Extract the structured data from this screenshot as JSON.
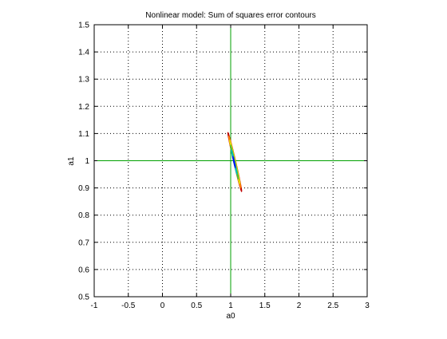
{
  "chart_data": {
    "type": "contour",
    "title": "Nonlinear model: Sum of squares error contours",
    "xlabel": "a0",
    "ylabel": "a1",
    "xlim": [
      -1,
      3
    ],
    "ylim": [
      0.5,
      1.5
    ],
    "xticks": [
      -1,
      -0.5,
      0,
      0.5,
      1,
      1.5,
      2,
      2.5,
      3
    ],
    "yticks": [
      0.5,
      0.6,
      0.7,
      0.8,
      0.9,
      1,
      1.1,
      1.2,
      1.3,
      1.4,
      1.5
    ],
    "xtick_labels": [
      "-1",
      "-0.5",
      "0",
      "0.5",
      "1",
      "1.5",
      "2",
      "2.5",
      "3"
    ],
    "ytick_labels": [
      "0.5",
      "0.6",
      "0.7",
      "0.8",
      "0.9",
      "1",
      "1.1",
      "1.2",
      "1.3",
      "1.4",
      "1.5"
    ],
    "grid": true,
    "reference_lines": {
      "x": 1,
      "y": 1,
      "color": "#00a000"
    },
    "contours": [
      {
        "level": 1,
        "center": [
          1.06,
          0.995
        ],
        "semi_major": 0.148,
        "semi_minor": 0.0115,
        "angle_deg": -1.07,
        "color": "#c00000"
      },
      {
        "level": 2,
        "center": [
          1.06,
          0.995
        ],
        "semi_major": 0.13,
        "semi_minor": 0.01,
        "angle_deg": -1.07,
        "color": "#ff8000"
      },
      {
        "level": 3,
        "center": [
          1.06,
          0.995
        ],
        "semi_major": 0.11,
        "semi_minor": 0.0085,
        "angle_deg": -1.07,
        "color": "#e0e000"
      },
      {
        "level": 4,
        "center": [
          1.055,
          0.995
        ],
        "semi_major": 0.085,
        "semi_minor": 0.0065,
        "angle_deg": -1.07,
        "color": "#40c040"
      },
      {
        "level": 5,
        "center": [
          1.05,
          0.995
        ],
        "semi_major": 0.06,
        "semi_minor": 0.0048,
        "angle_deg": -1.07,
        "color": "#00c0c0"
      },
      {
        "level": 6,
        "center": [
          1.05,
          0.995
        ],
        "semi_major": 0.028,
        "semi_minor": 0.003,
        "angle_deg": -1.07,
        "color": "#0000ff"
      }
    ]
  }
}
